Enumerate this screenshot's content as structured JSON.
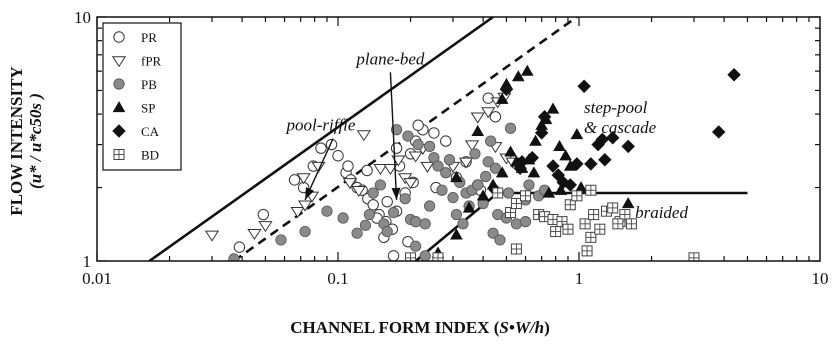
{
  "chart_data": {
    "type": "scatter",
    "xlabel": {
      "prefix": "CHANNEL FORM INDEX (",
      "italic": "S•W/h",
      "suffix": ")"
    },
    "ylabel": {
      "line1": "FLOW INTENSITY",
      "line2": "(u* / u*c50s )"
    },
    "x_scale": "log",
    "y_scale": "log",
    "xlim": [
      0.01,
      10
    ],
    "ylim": [
      1,
      10
    ],
    "x_ticks": [
      {
        "value": 0.01,
        "label": "0.01"
      },
      {
        "value": 0.1,
        "label": "0.1"
      },
      {
        "value": 1,
        "label": "1"
      },
      {
        "value": 10,
        "label": "10"
      }
    ],
    "y_ticks": [
      {
        "value": 1,
        "label": "1"
      },
      {
        "value": 10,
        "label": "10"
      }
    ],
    "legend": {
      "placement": "top-left",
      "entries": [
        {
          "key": "PR",
          "label": "PR",
          "marker": "open-circle"
        },
        {
          "key": "fPR",
          "label": "fPR",
          "marker": "open-triangle-down"
        },
        {
          "key": "PB",
          "label": "PB",
          "marker": "gray-circle"
        },
        {
          "key": "SP",
          "label": "SP",
          "marker": "filled-triangle"
        },
        {
          "key": "CA",
          "label": "CA",
          "marker": "filled-diamond"
        },
        {
          "key": "BD",
          "label": "BD",
          "marker": "boxed-plus"
        }
      ]
    },
    "boundaries": [
      {
        "style": "solid",
        "points": [
          [
            0.0165,
            1.0
          ],
          [
            0.44,
            10.0
          ]
        ]
      },
      {
        "style": "dashed",
        "points": [
          [
            0.037,
            1.0
          ],
          [
            0.98,
            10.0
          ]
        ]
      },
      {
        "style": "solid",
        "points": [
          [
            0.21,
            1.0
          ],
          [
            0.46,
            1.9
          ],
          [
            5.0,
            1.9
          ]
        ]
      }
    ],
    "annotations": [
      {
        "text": "plane-bed",
        "x": 0.165,
        "y": 6.4,
        "arrow_to": [
          0.175,
          1.78
        ]
      },
      {
        "text": "pool-riffle",
        "x": 0.085,
        "y": 3.42,
        "arrow_to": [
          0.073,
          1.78
        ]
      },
      {
        "text": "step-pool",
        "x": 1.42,
        "y": 4.05
      },
      {
        "text": "& cascade",
        "x": 1.48,
        "y": 3.35
      },
      {
        "text": "braided",
        "x": 2.2,
        "y": 1.5
      }
    ],
    "series": [
      {
        "name": "PR",
        "marker": "open-circle",
        "points": [
          [
            0.039,
            1.14
          ],
          [
            0.049,
            1.55
          ],
          [
            0.066,
            2.15
          ],
          [
            0.072,
            2.0
          ],
          [
            0.079,
            2.45
          ],
          [
            0.085,
            2.9
          ],
          [
            0.094,
            3.0
          ],
          [
            0.1,
            2.7
          ],
          [
            0.108,
            2.3
          ],
          [
            0.113,
            2.15
          ],
          [
            0.12,
            2.0
          ],
          [
            0.126,
            1.95
          ],
          [
            0.133,
            1.8
          ],
          [
            0.14,
            1.7
          ],
          [
            0.148,
            1.55
          ],
          [
            0.158,
            1.45
          ],
          [
            0.168,
            1.35
          ],
          [
            0.175,
            1.6
          ],
          [
            0.19,
            1.9
          ],
          [
            0.205,
            2.1
          ],
          [
            0.195,
            1.2
          ],
          [
            0.17,
            1.05
          ],
          [
            0.155,
            1.25
          ],
          [
            0.145,
            1.5
          ],
          [
            0.16,
            1.75
          ],
          [
            0.18,
            2.45
          ],
          [
            0.2,
            2.75
          ],
          [
            0.21,
            3.1
          ],
          [
            0.225,
            3.45
          ],
          [
            0.215,
            3.6
          ],
          [
            0.25,
            3.35
          ],
          [
            0.28,
            3.1
          ],
          [
            0.255,
            2.0
          ],
          [
            0.31,
            2.2
          ],
          [
            0.34,
            2.55
          ],
          [
            0.38,
            2.05
          ],
          [
            0.42,
            4.65
          ],
          [
            0.45,
            3.9
          ],
          [
            0.39,
            1.95
          ],
          [
            0.132,
            2.35
          ],
          [
            0.11,
            2.45
          ],
          [
            0.175,
            2.9
          ]
        ]
      },
      {
        "name": "fPR",
        "marker": "open-triangle-down",
        "points": [
          [
            0.03,
            1.28
          ],
          [
            0.045,
            1.3
          ],
          [
            0.05,
            1.4
          ],
          [
            0.068,
            1.6
          ],
          [
            0.073,
            1.7
          ],
          [
            0.078,
            1.85
          ],
          [
            0.072,
            2.2
          ],
          [
            0.083,
            2.45
          ],
          [
            0.112,
            2.1
          ],
          [
            0.122,
            1.95
          ],
          [
            0.128,
            3.3
          ],
          [
            0.15,
            2.4
          ],
          [
            0.165,
            2.4
          ],
          [
            0.178,
            2.6
          ],
          [
            0.19,
            2.2
          ],
          [
            0.2,
            2.1
          ],
          [
            0.21,
            2.7
          ],
          [
            0.225,
            2.9
          ],
          [
            0.235,
            2.45
          ],
          [
            0.3,
            2.45
          ],
          [
            0.34,
            2.55
          ],
          [
            0.36,
            3.0
          ],
          [
            0.38,
            3.9
          ],
          [
            0.42,
            4.1
          ],
          [
            0.46,
            4.5
          ],
          [
            0.49,
            4.7
          ],
          [
            0.5,
            2.65
          ],
          [
            0.53,
            2.55
          ],
          [
            0.45,
            2.95
          ]
        ]
      },
      {
        "name": "PB",
        "marker": "gray-circle",
        "points": [
          [
            0.037,
            1.02
          ],
          [
            0.058,
            1.22
          ],
          [
            0.073,
            1.32
          ],
          [
            0.09,
            1.6
          ],
          [
            0.105,
            1.5
          ],
          [
            0.12,
            1.3
          ],
          [
            0.13,
            1.4
          ],
          [
            0.135,
            1.55
          ],
          [
            0.14,
            1.9
          ],
          [
            0.15,
            2.05
          ],
          [
            0.155,
            1.42
          ],
          [
            0.16,
            1.32
          ],
          [
            0.17,
            1.58
          ],
          [
            0.19,
            1.8
          ],
          [
            0.2,
            1.48
          ],
          [
            0.21,
            1.45
          ],
          [
            0.23,
            1.42
          ],
          [
            0.24,
            1.68
          ],
          [
            0.21,
            1.15
          ],
          [
            0.23,
            1.05
          ],
          [
            0.175,
            3.45
          ],
          [
            0.195,
            3.25
          ],
          [
            0.215,
            3.0
          ],
          [
            0.24,
            2.95
          ],
          [
            0.25,
            2.65
          ],
          [
            0.26,
            2.45
          ],
          [
            0.28,
            2.3
          ],
          [
            0.29,
            2.6
          ],
          [
            0.27,
            1.95
          ],
          [
            0.3,
            1.82
          ],
          [
            0.32,
            2.1
          ],
          [
            0.34,
            1.9
          ],
          [
            0.31,
            1.55
          ],
          [
            0.33,
            1.42
          ],
          [
            0.35,
            1.68
          ],
          [
            0.36,
            1.95
          ],
          [
            0.38,
            2.05
          ],
          [
            0.41,
            2.22
          ],
          [
            0.42,
            2.55
          ],
          [
            0.4,
            1.72
          ],
          [
            0.46,
            1.55
          ],
          [
            0.5,
            1.5
          ],
          [
            0.51,
            1.9
          ],
          [
            0.44,
            1.3
          ],
          [
            0.47,
            1.22
          ],
          [
            0.55,
            1.42
          ],
          [
            0.6,
            1.78
          ],
          [
            0.62,
            2.05
          ],
          [
            0.68,
            1.85
          ],
          [
            0.72,
            1.95
          ],
          [
            0.52,
            3.5
          ],
          [
            0.45,
            2.4
          ],
          [
            0.37,
            2.75
          ],
          [
            0.43,
            3.1
          ],
          [
            0.6,
            1.45
          ]
        ]
      },
      {
        "name": "SP",
        "marker": "filled-triangle",
        "points": [
          [
            0.26,
            1.08
          ],
          [
            0.31,
            1.28
          ],
          [
            0.35,
            1.65
          ],
          [
            0.4,
            1.85
          ],
          [
            0.44,
            2.05
          ],
          [
            0.48,
            2.3
          ],
          [
            0.52,
            2.8
          ],
          [
            0.55,
            2.55
          ],
          [
            0.58,
            2.4
          ],
          [
            0.62,
            2.6
          ],
          [
            0.65,
            2.3
          ],
          [
            0.66,
            3.1
          ],
          [
            0.7,
            3.6
          ],
          [
            0.73,
            3.8
          ],
          [
            0.78,
            4.2
          ],
          [
            0.83,
            2.95
          ],
          [
            0.88,
            2.7
          ],
          [
            0.92,
            2.45
          ],
          [
            0.75,
            1.9
          ],
          [
            0.84,
            1.95
          ],
          [
            1.02,
            2.0
          ],
          [
            0.48,
            4.6
          ],
          [
            0.5,
            5.3
          ],
          [
            0.56,
            5.7
          ],
          [
            0.61,
            6.0
          ],
          [
            0.38,
            3.4
          ],
          [
            0.31,
            2.2
          ],
          [
            1.6,
            1.72
          ],
          [
            0.98,
            3.3
          ]
        ]
      },
      {
        "name": "CA",
        "marker": "filled-diamond",
        "points": [
          [
            0.45,
            1.95
          ],
          [
            0.5,
            5.05
          ],
          [
            0.58,
            2.55
          ],
          [
            0.64,
            2.65
          ],
          [
            0.7,
            3.35
          ],
          [
            0.72,
            3.9
          ],
          [
            0.78,
            2.45
          ],
          [
            0.82,
            2.25
          ],
          [
            0.86,
            2.1
          ],
          [
            0.92,
            2.05
          ],
          [
            0.98,
            2.5
          ],
          [
            1.05,
            5.2
          ],
          [
            1.2,
            3.0
          ],
          [
            1.25,
            3.15
          ],
          [
            1.38,
            3.2
          ],
          [
            1.6,
            2.95
          ],
          [
            1.28,
            2.6
          ],
          [
            1.12,
            2.5
          ],
          [
            3.8,
            3.38
          ],
          [
            4.4,
            5.8
          ],
          [
            0.57,
            2.4
          ]
        ]
      },
      {
        "name": "BD",
        "marker": "boxed-plus",
        "points": [
          [
            0.2,
            1.03
          ],
          [
            0.26,
            1.03
          ],
          [
            0.46,
            1.9
          ],
          [
            0.52,
            1.58
          ],
          [
            0.55,
            1.72
          ],
          [
            0.6,
            1.85
          ],
          [
            0.68,
            1.55
          ],
          [
            0.72,
            1.52
          ],
          [
            0.78,
            1.48
          ],
          [
            0.85,
            1.45
          ],
          [
            0.92,
            1.7
          ],
          [
            0.98,
            1.85
          ],
          [
            1.06,
            1.42
          ],
          [
            1.12,
            1.25
          ],
          [
            1.15,
            1.55
          ],
          [
            1.22,
            1.35
          ],
          [
            1.3,
            1.6
          ],
          [
            1.38,
            1.65
          ],
          [
            1.48,
            1.45
          ],
          [
            1.55,
            1.55
          ],
          [
            1.65,
            1.42
          ],
          [
            0.8,
            1.32
          ],
          [
            0.9,
            1.35
          ],
          [
            1.08,
            1.1
          ],
          [
            0.55,
            1.12
          ],
          [
            3.0,
            1.03
          ],
          [
            1.12,
            1.95
          ],
          [
            1.45,
            1.42
          ]
        ]
      }
    ]
  }
}
